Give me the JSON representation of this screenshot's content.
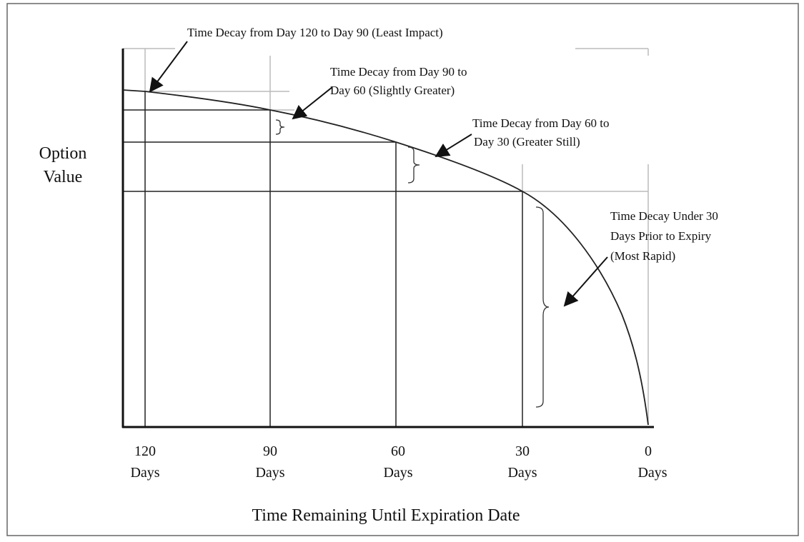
{
  "y_label": [
    "Option",
    "Value"
  ],
  "x_label": "Time Remaining Until Expiration Date",
  "x_ticks": [
    {
      "number": "120",
      "unit": "Days"
    },
    {
      "number": "90",
      "unit": "Days"
    },
    {
      "number": "60",
      "unit": "Days"
    },
    {
      "number": "30",
      "unit": "Days"
    },
    {
      "number": "0",
      "unit": "Days"
    }
  ],
  "annotations": [
    {
      "lines": [
        "Time Decay from Day 120 to Day 90 (Least Impact)"
      ]
    },
    {
      "lines": [
        "Time Decay from Day 90 to",
        "Day 60 (Slightly Greater)"
      ]
    },
    {
      "lines": [
        "Time Decay from Day 60 to",
        "Day 30 (Greater Still)"
      ]
    },
    {
      "lines": [
        "Time Decay Under 30",
        "Days Prior to Expiry",
        "(Most Rapid)"
      ]
    }
  ]
}
